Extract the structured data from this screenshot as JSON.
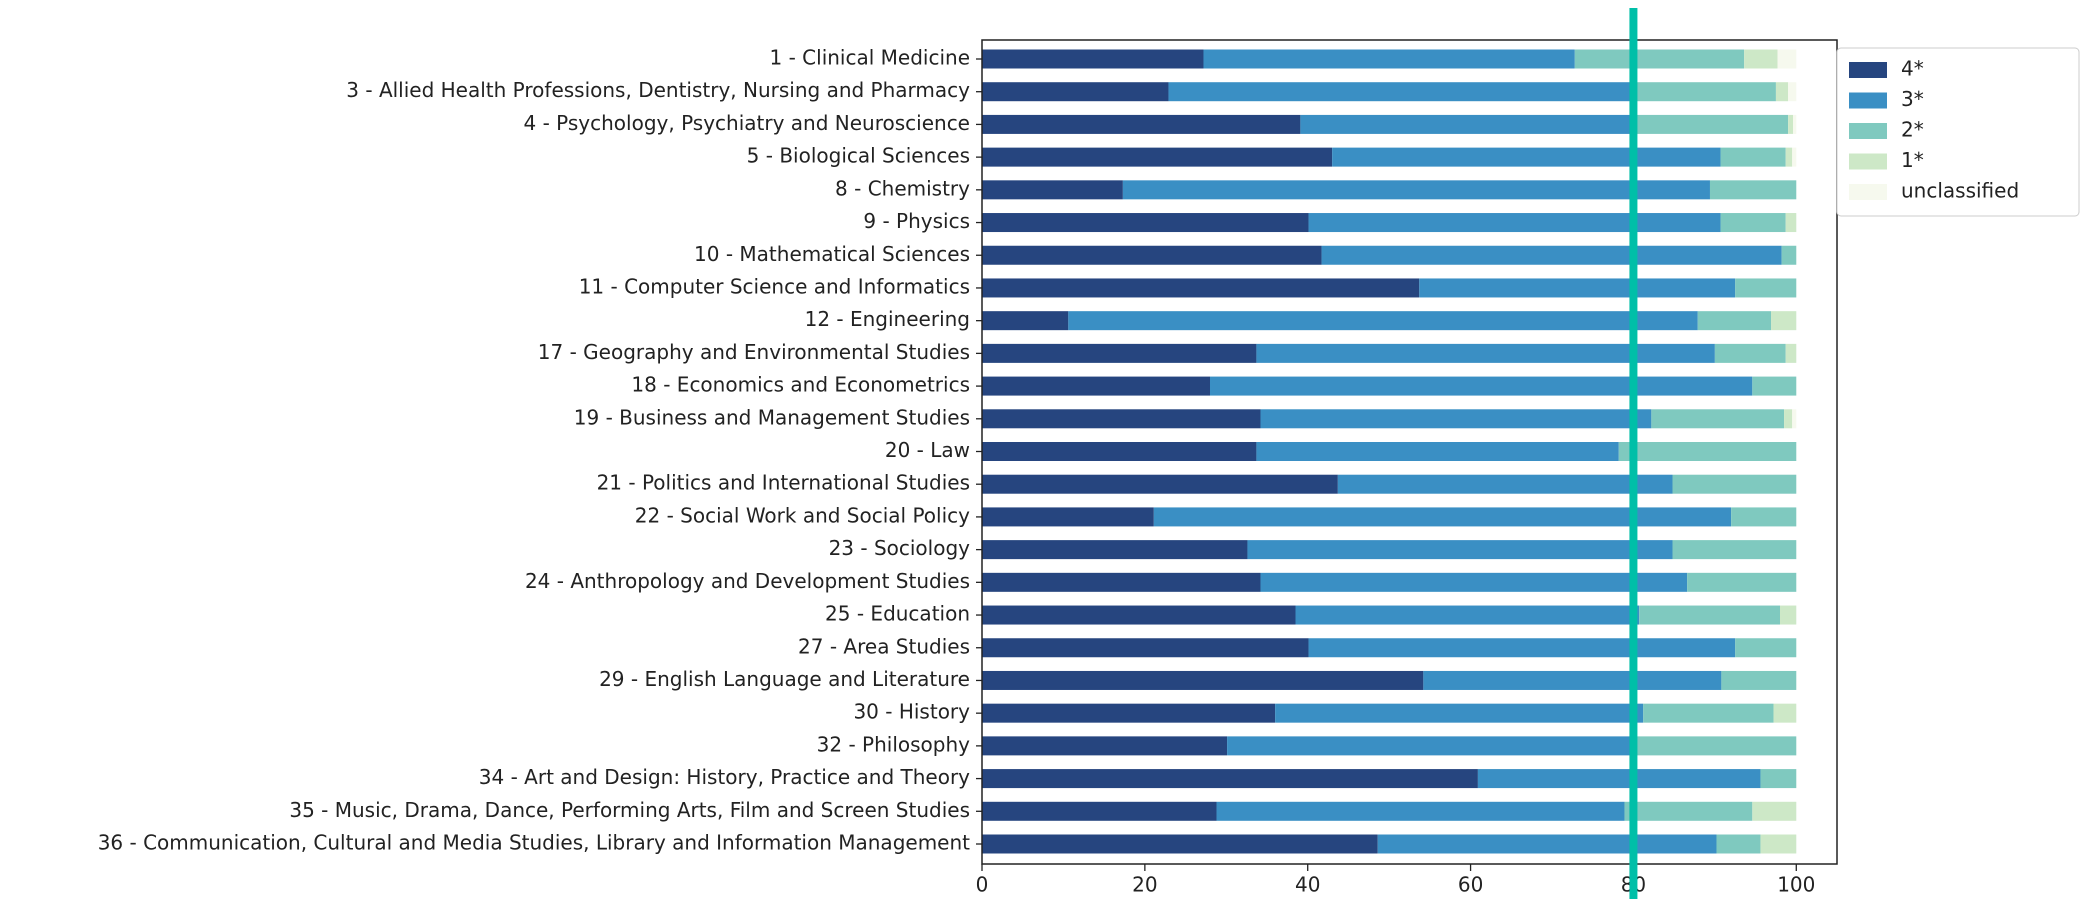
{
  "chart_data": {
    "type": "stacked-barh",
    "categories": [
      "1 - Clinical Medicine",
      "3 - Allied Health Professions, Dentistry, Nursing and Pharmacy",
      "4 - Psychology, Psychiatry and Neuroscience",
      "5 - Biological Sciences",
      "8 - Chemistry",
      "9 - Physics",
      "10 - Mathematical Sciences",
      "11 - Computer Science and Informatics",
      "12 - Engineering",
      "17 - Geography and Environmental Studies",
      "18 - Economics and Econometrics",
      "19 - Business and Management Studies",
      "20 - Law",
      "21 - Politics and International Studies",
      "22 - Social Work and Social Policy",
      "23 - Sociology",
      "24 - Anthropology and Development Studies",
      "25 - Education",
      "27 - Area Studies",
      "29 - English Language and Literature",
      "30 - History",
      "32 - Philosophy",
      "34 - Art and Design: History, Practice and Theory",
      "35 - Music, Drama, Dance, Performing Arts, Film and Screen Studies",
      "36 - Communication, Cultural and Media Studies, Library and Information Management"
    ],
    "series": [
      {
        "name": "4*",
        "color": "#26457f",
        "values": [
          27.2,
          22.9,
          39.1,
          43.0,
          17.3,
          40.1,
          41.7,
          53.7,
          10.6,
          33.7,
          28.0,
          34.2,
          33.7,
          43.7,
          21.1,
          32.6,
          34.2,
          38.5,
          40.1,
          54.2,
          36.0,
          30.1,
          60.9,
          28.8,
          48.6
        ]
      },
      {
        "name": "3*",
        "color": "#3a8fc4",
        "values": [
          45.6,
          57.1,
          40.6,
          47.7,
          72.1,
          50.6,
          56.5,
          38.8,
          77.3,
          56.3,
          66.6,
          48.0,
          44.5,
          41.1,
          70.9,
          52.2,
          52.4,
          42.2,
          52.4,
          36.6,
          45.2,
          49.6,
          34.7,
          50.1,
          41.6
        ]
      },
      {
        "name": "2*",
        "color": "#7fc9bf",
        "values": [
          20.8,
          17.5,
          19.3,
          8.0,
          10.6,
          8.0,
          1.8,
          7.5,
          9.0,
          8.7,
          5.4,
          16.3,
          21.8,
          15.2,
          8.0,
          15.2,
          13.4,
          17.3,
          7.5,
          9.2,
          16.0,
          20.3,
          4.4,
          15.7,
          5.4
        ]
      },
      {
        "name": "1*",
        "color": "#cde8c7",
        "values": [
          4.1,
          1.5,
          0.6,
          0.8,
          0,
          1.3,
          0,
          0,
          3.1,
          1.3,
          0,
          1.0,
          0,
          0,
          0,
          0,
          0,
          2.0,
          0,
          0,
          2.8,
          0,
          0,
          5.4,
          4.4
        ]
      },
      {
        "name": "unclassified",
        "color": "#f6f9ee",
        "values": [
          2.3,
          1.0,
          0.4,
          0.5,
          0,
          0,
          0,
          0,
          0,
          0,
          0,
          0.5,
          0,
          0,
          0,
          0,
          0,
          0,
          0,
          0,
          0,
          0,
          0,
          0,
          0
        ]
      }
    ],
    "xlim": [
      0,
      105
    ],
    "xticks": [
      0,
      20,
      40,
      60,
      80,
      100
    ],
    "reference_line": {
      "value": 80,
      "color": "#00bfa8"
    },
    "legend": "upper right outside"
  }
}
